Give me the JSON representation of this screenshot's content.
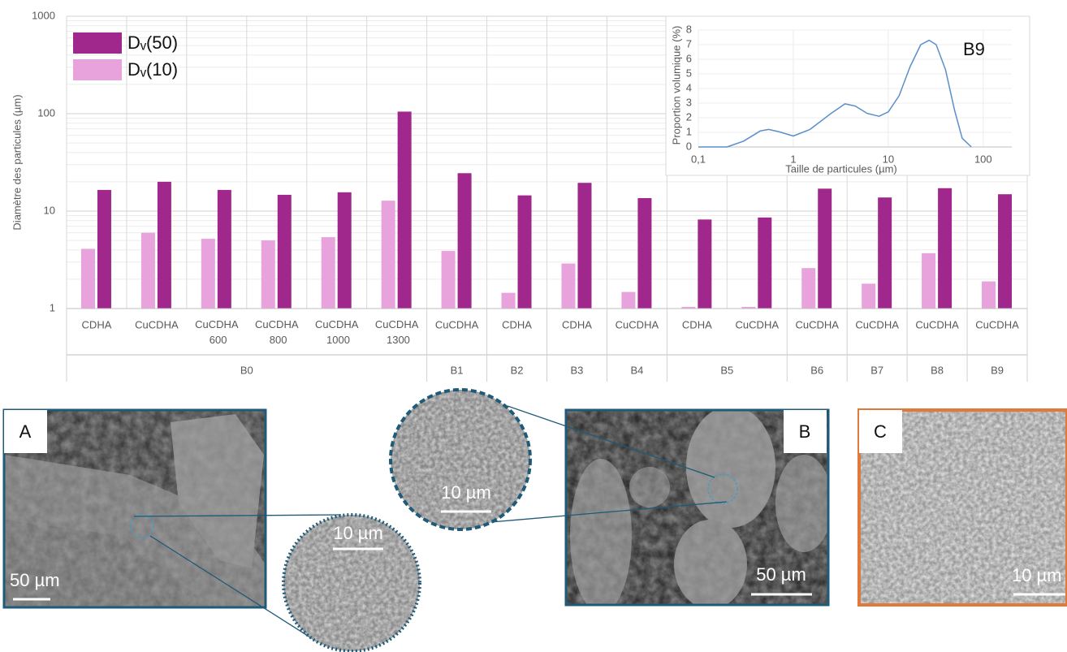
{
  "chart_data": [
    {
      "type": "bar",
      "y_label": "Diamètre des particules (µm)",
      "categories": [
        "CDHA",
        "CuCDHA",
        "CuCDHA 600",
        "CuCDHA 800",
        "CuCDHA 1000",
        "CuCDHA 1300",
        "CuCDHA",
        "CDHA",
        "CDHA",
        "CuCDHA",
        "CDHA",
        "CuCDHA",
        "CuCDHA",
        "CuCDHA",
        "CuCDHA",
        "CuCDHA"
      ],
      "groups": [
        {
          "label": "B0",
          "span": 6
        },
        {
          "label": "B1",
          "span": 1
        },
        {
          "label": "B2",
          "span": 1
        },
        {
          "label": "B3",
          "span": 1
        },
        {
          "label": "B4",
          "span": 1
        },
        {
          "label": "B5",
          "span": 2
        },
        {
          "label": "B6",
          "span": 1
        },
        {
          "label": "B7",
          "span": 1
        },
        {
          "label": "B8",
          "span": 1
        },
        {
          "label": "B9",
          "span": 1
        }
      ],
      "series": [
        {
          "name": "Dᵥ(10)",
          "color": "#e8a2dc",
          "values": [
            4.1,
            6.0,
            5.2,
            5.0,
            5.4,
            12.8,
            3.9,
            1.45,
            2.9,
            1.48,
            1.04,
            1.04,
            2.6,
            1.8,
            3.7,
            1.9
          ]
        },
        {
          "name": "Dᵥ(50)",
          "color": "#a0288c",
          "values": [
            16.5,
            20,
            16.5,
            14.7,
            15.6,
            105,
            24.5,
            14.5,
            19.5,
            13.6,
            8.2,
            8.6,
            17,
            13.8,
            17.2,
            14.9
          ]
        }
      ],
      "log_scale": true,
      "ylim": [
        1,
        1000
      ],
      "yticks": [
        1,
        10,
        100,
        1000
      ],
      "grid": true,
      "legend": "top-left"
    },
    {
      "type": "line",
      "annotation": "B9",
      "x_label": "Taille de particules (µm)",
      "y_label": "Proportion volumique (%)",
      "x": [
        0.1,
        0.2,
        0.3,
        0.45,
        0.55,
        0.7,
        1.0,
        1.5,
        2.5,
        3.5,
        4.5,
        6,
        8,
        10,
        13,
        17,
        22,
        27,
        32,
        40,
        50,
        60,
        75
      ],
      "values": [
        0,
        0,
        0.4,
        1.1,
        1.2,
        1.05,
        0.75,
        1.2,
        2.3,
        2.95,
        2.8,
        2.3,
        2.1,
        2.4,
        3.5,
        5.5,
        7.0,
        7.3,
        7.0,
        5.3,
        2.5,
        0.6,
        0
      ],
      "color": "#5b8fc7",
      "log_x": true,
      "xlim": [
        0.1,
        200
      ],
      "xticks": [
        {
          "value": 0.1,
          "label": "0,1"
        },
        1,
        10,
        100
      ],
      "ylim": [
        0,
        8
      ],
      "yticks": [
        0,
        1,
        2,
        3,
        4,
        5,
        6,
        7,
        8
      ],
      "grid": true
    }
  ],
  "micrographs": [
    {
      "label": "A",
      "scale_bar": "50 µm",
      "zoom_scale_bar": "10 µm"
    },
    {
      "label": "B",
      "scale_bar": "50 µm",
      "zoom_scale_bar": "10 µm"
    },
    {
      "label": "C",
      "scale_bar": "10 µm"
    }
  ]
}
